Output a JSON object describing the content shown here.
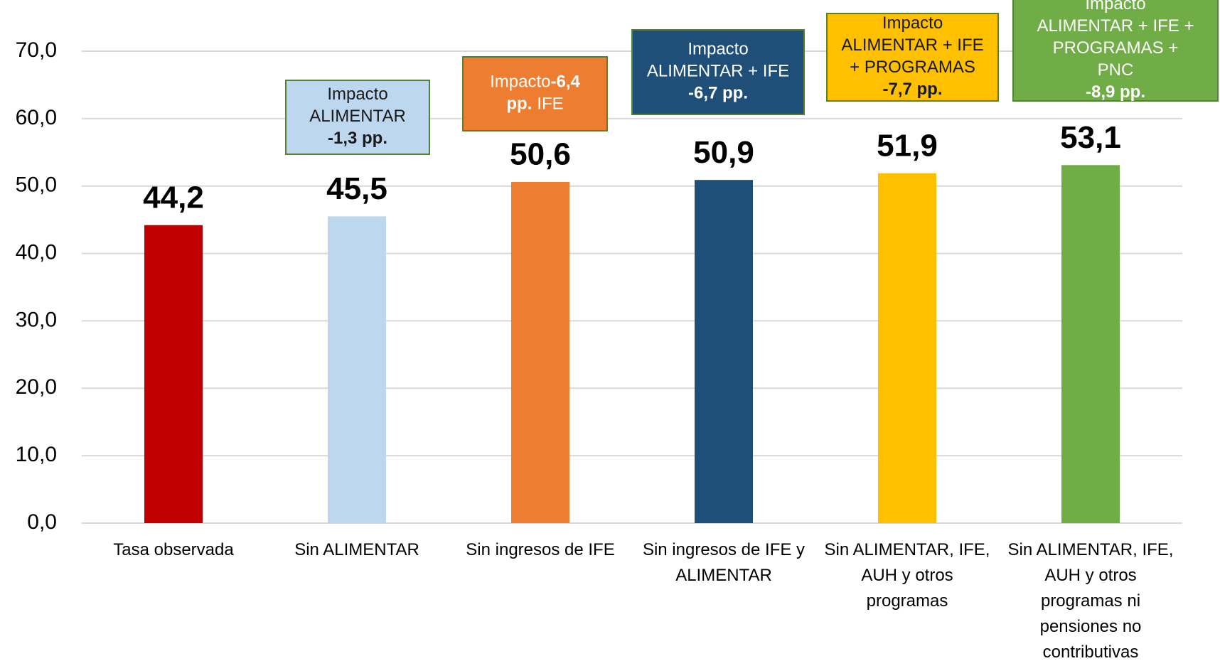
{
  "chart_data": {
    "type": "bar",
    "categories": [
      "Tasa observada",
      "Sin ALIMENTAR",
      "Sin ingresos de IFE",
      "Sin ingresos de IFE y ALIMENTAR",
      "Sin ALIMENTAR, IFE, AUH y otros programas",
      "Sin ALIMENTAR, IFE, AUH y otros programas ni pensiones no contributivas"
    ],
    "values": [
      44.2,
      45.5,
      50.6,
      50.9,
      51.9,
      53.1
    ],
    "value_labels": [
      "44,2",
      "45,5",
      "50,6",
      "50,9",
      "51,9",
      "53,1"
    ],
    "colors": [
      "#c00000",
      "#bdd7ee",
      "#ed7d31",
      "#1f4e79",
      "#ffc000",
      "#70ad47"
    ],
    "ylim": [
      0,
      70
    ],
    "yticks": [
      {
        "value": 0,
        "label": "0,0"
      },
      {
        "value": 10,
        "label": "10,0"
      },
      {
        "value": 20,
        "label": "20,0"
      },
      {
        "value": 30,
        "label": "30,0"
      },
      {
        "value": 40,
        "label": "40,0"
      },
      {
        "value": 50,
        "label": "50,0"
      },
      {
        "value": 60,
        "label": "60,0"
      },
      {
        "value": 70,
        "label": "70,0"
      }
    ],
    "grid": true,
    "annotations": [
      {
        "fill": "#bdd7ee",
        "text_color": "#1a1a1a",
        "lines": [
          [
            {
              "text": "Impacto"
            }
          ],
          [
            {
              "text": "ALIMENTAR"
            }
          ],
          [
            {
              "text": "-1,3 pp.",
              "bold": true
            }
          ]
        ]
      },
      {
        "fill": "#ed7d31",
        "text_color": "#ffffff",
        "lines": [
          [
            {
              "text": "Impacto"
            },
            {
              "text": "-6,4",
              "bold": true
            }
          ],
          [
            {
              "text": "pp.",
              "bold": true
            },
            {
              "text": "IFE"
            }
          ]
        ]
      },
      {
        "fill": "#1f4e79",
        "text_color": "#ffffff",
        "lines": [
          [
            {
              "text": "Impacto"
            }
          ],
          [
            {
              "text": "ALIMENTAR + IFE"
            }
          ],
          [
            {
              "text": "-6,7 pp.",
              "bold": true
            }
          ]
        ]
      },
      {
        "fill": "#ffc000",
        "text_color": "#1a1a1a",
        "lines": [
          [
            {
              "text": "Impacto"
            }
          ],
          [
            {
              "text": "ALIMENTAR + IFE"
            }
          ],
          [
            {
              "text": "+ PROGRAMAS"
            }
          ],
          [
            {
              "text": "-7,7 pp.",
              "bold": true
            }
          ]
        ]
      },
      {
        "fill": "#70ad47",
        "text_color": "#ffffff",
        "lines": [
          [
            {
              "text": "Impacto"
            }
          ],
          [
            {
              "text": "ALIMENTAR + IFE +"
            }
          ],
          [
            {
              "text": "PROGRAMAS +"
            }
          ],
          [
            {
              "text": "PNC"
            }
          ],
          [
            {
              "text": "-8,9 pp.",
              "bold": true
            }
          ]
        ]
      }
    ]
  }
}
